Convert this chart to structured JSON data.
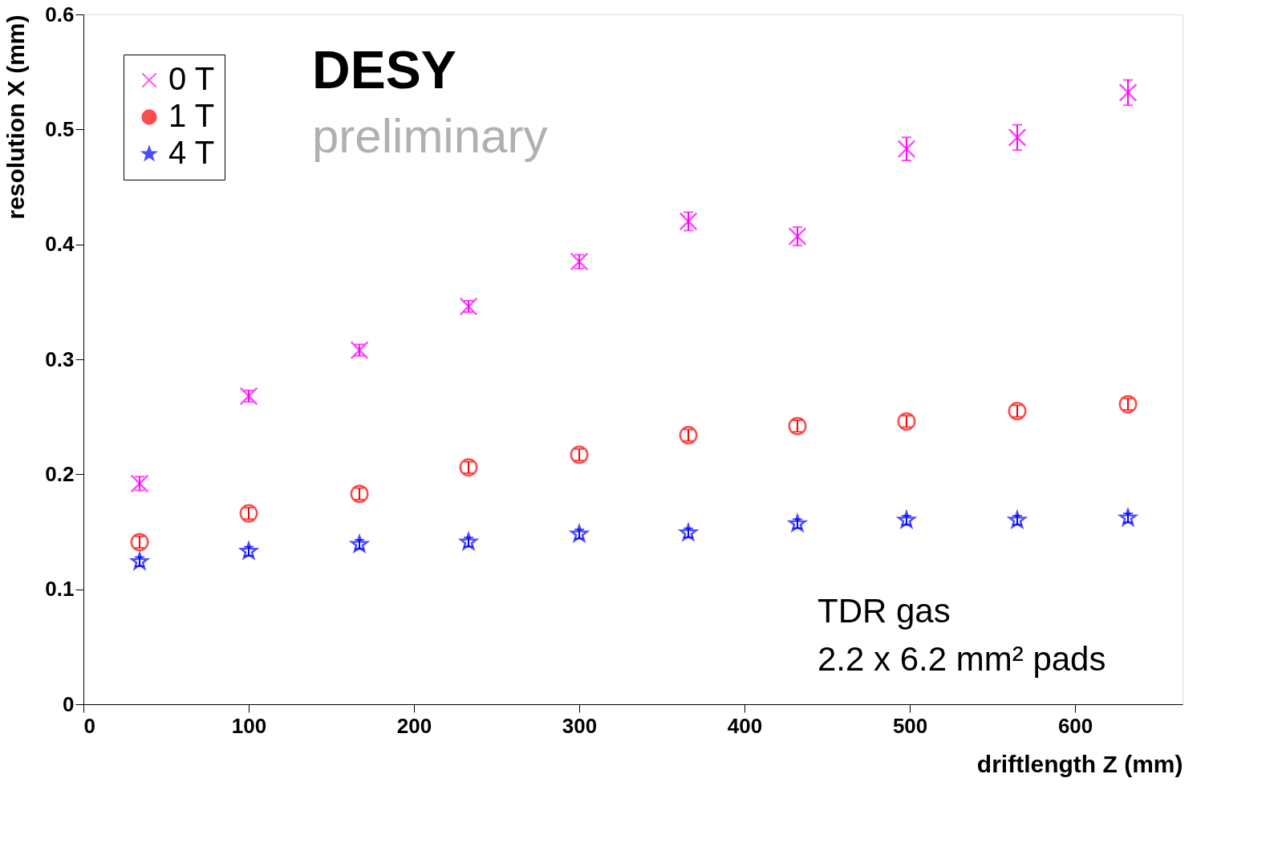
{
  "chart_data": {
    "type": "scatter",
    "xlabel": "driftlength Z (mm)",
    "ylabel": "resolution X (mm)",
    "xlim": [
      0,
      665
    ],
    "ylim": [
      0,
      0.6
    ],
    "xticks": [
      0,
      100,
      200,
      300,
      400,
      500,
      600
    ],
    "yticks": [
      0,
      0.1,
      0.2,
      0.3,
      0.4,
      0.5,
      0.6
    ],
    "grid": false,
    "legend": "top left",
    "x": [
      34,
      100,
      167,
      233,
      300,
      366,
      432,
      498,
      565,
      632
    ],
    "series": [
      {
        "name": "0 T",
        "color": "#ff00ff",
        "marker": "cross",
        "values": [
          0.192,
          0.268,
          0.308,
          0.346,
          0.385,
          0.42,
          0.407,
          0.483,
          0.493,
          0.532
        ],
        "errors": [
          0.006,
          0.005,
          0.005,
          0.005,
          0.006,
          0.008,
          0.008,
          0.01,
          0.011,
          0.011
        ]
      },
      {
        "name": "1 T",
        "color": "#ff0000",
        "marker": "circle",
        "values": [
          0.141,
          0.166,
          0.183,
          0.206,
          0.217,
          0.234,
          0.242,
          0.246,
          0.255,
          0.261
        ],
        "errors": [
          0.005,
          0.005,
          0.005,
          0.005,
          0.005,
          0.005,
          0.005,
          0.005,
          0.005,
          0.005
        ]
      },
      {
        "name": "4 T",
        "color": "#0000ff",
        "marker": "star",
        "values": [
          0.124,
          0.133,
          0.139,
          0.141,
          0.148,
          0.149,
          0.157,
          0.16,
          0.16,
          0.162
        ],
        "errors": [
          0.004,
          0.004,
          0.004,
          0.004,
          0.004,
          0.004,
          0.004,
          0.004,
          0.004,
          0.004
        ]
      }
    ],
    "annotations": [
      "DESY",
      "preliminary",
      "TDR gas",
      "2.2 x 6.2 mm² pads"
    ]
  }
}
